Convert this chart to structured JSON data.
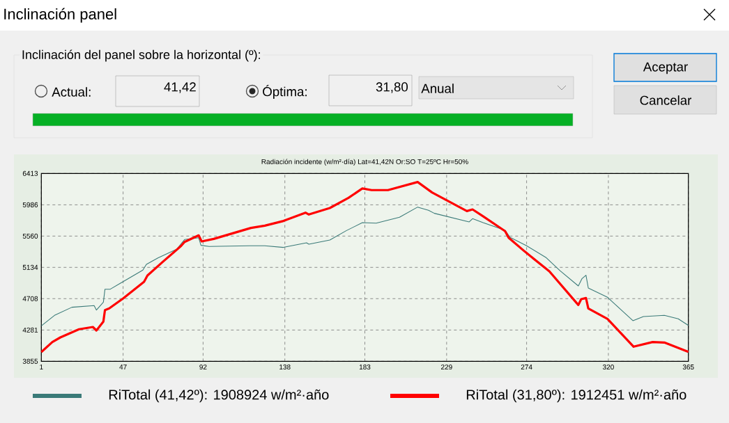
{
  "chart_data": {
    "type": "line",
    "title": "Radiación incidente (w/m²·día) Lat=41,42N Or:SO T=25ºC Hr=50%",
    "xlim": [
      1,
      365
    ],
    "xticks": [
      1,
      47,
      92,
      138,
      183,
      229,
      274,
      320,
      365
    ],
    "ylim": [
      3855,
      6413
    ],
    "yticks": [
      3855,
      4281,
      4708,
      5134,
      5560,
      5986,
      6413
    ],
    "grid": true,
    "legend": "bottom",
    "annotations": [
      "Inclinación panel",
      "Inclinación del panel sobre la horizontal (º):",
      "Actual:",
      "41,42",
      "Óptima:",
      "31,80",
      "Anual",
      "Aceptar",
      "Cancelar"
    ],
    "series": [
      {
        "name": "RiTotal (41,42º): 1908924 w/m²·año",
        "color": "#3a7a78",
        "x": [
          1,
          8.4,
          18.2,
          30.7,
          32,
          35.9,
          36.8,
          39.8,
          45.7,
          58.1,
          60.1,
          66.6,
          77.1,
          81.6,
          89.5,
          90.8,
          95.4,
          118.2,
          126.7,
          137.2,
          150.2,
          151.5,
          163.3,
          172.5,
          181.6,
          189.4,
          202.5,
          212.7,
          218.8,
          222.1,
          241.7,
          243.6,
          249.5,
          261.9,
          264.6,
          274,
          284.8,
          292.7,
          303.1,
          305.1,
          307.4,
          308.7,
          319.5,
          333.8,
          339.7,
          351.5,
          359.3,
          365
        ],
        "values": [
          4338,
          4480,
          4591,
          4613,
          4553,
          4660,
          4837,
          4837,
          4922,
          5096,
          5175,
          5263,
          5380,
          5513,
          5538,
          5434,
          5418,
          5428,
          5428,
          5406,
          5469,
          5450,
          5507,
          5633,
          5743,
          5737,
          5816,
          5955,
          5911,
          5870,
          5753,
          5797,
          5743,
          5639,
          5545,
          5428,
          5270,
          5090,
          4881,
          4979,
          5027,
          4853,
          4727,
          4408,
          4465,
          4480,
          4433,
          4344
        ]
      },
      {
        "name": "RiTotal (31,80º): 1912451 w/m²·año",
        "color": "#ff0000",
        "x": [
          1,
          7.2,
          11.7,
          22.2,
          30,
          32,
          35.9,
          36.8,
          39.2,
          47,
          58.8,
          60.7,
          69.2,
          79.7,
          81.6,
          89.5,
          91.2,
          98,
          118.9,
          126.7,
          137.2,
          149.6,
          151.5,
          163.3,
          173.8,
          181.6,
          186.8,
          196,
          212.7,
          220.8,
          240.4,
          243.6,
          249.5,
          261.9,
          263.9,
          273,
          286.8,
          303.1,
          304.7,
          307.4,
          308.7,
          319.5,
          334.2,
          344.9,
          351.5,
          365
        ],
        "values": [
          3981,
          4117,
          4180,
          4291,
          4322,
          4275,
          4395,
          4553,
          4575,
          4711,
          4938,
          5023,
          5207,
          5428,
          5481,
          5570,
          5488,
          5522,
          5671,
          5702,
          5766,
          5879,
          5854,
          5942,
          6081,
          6208,
          6186,
          6186,
          6296,
          6154,
          5901,
          5923,
          5829,
          5627,
          5538,
          5349,
          5080,
          4622,
          4701,
          4717,
          4575,
          4433,
          4054,
          4117,
          4111,
          3984
        ]
      }
    ]
  }
}
